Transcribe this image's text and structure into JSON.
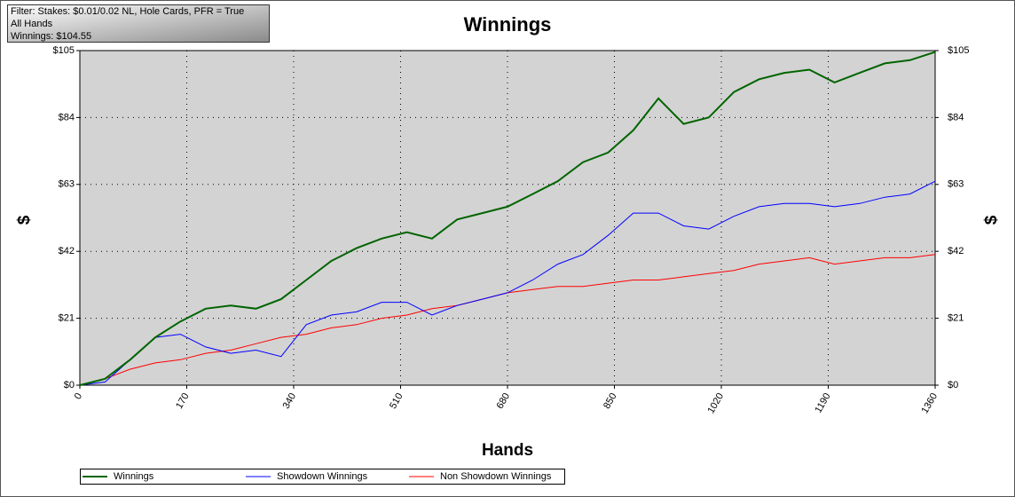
{
  "chart_data": {
    "type": "line",
    "title": "Winnings",
    "info": [
      "Filter: Stakes: $0.01/0.02 NL, Hole Cards, PFR = True",
      "All Hands",
      "Winnings: $104.55"
    ],
    "xlabel": "Hands",
    "ylabel": "$",
    "x": [
      0,
      40,
      80,
      120,
      160,
      200,
      240,
      280,
      320,
      360,
      400,
      440,
      480,
      520,
      560,
      600,
      640,
      680,
      720,
      760,
      800,
      840,
      880,
      920,
      960,
      1000,
      1040,
      1080,
      1120,
      1160,
      1200,
      1240,
      1280,
      1320,
      1360
    ],
    "series": [
      {
        "name": "Winnings",
        "color": "#006400",
        "values": [
          0,
          2,
          8,
          15,
          20,
          24,
          25,
          24,
          27,
          33,
          39,
          43,
          46,
          48,
          46,
          52,
          54,
          56,
          60,
          64,
          70,
          73,
          80,
          90,
          82,
          84,
          92,
          96,
          98,
          99,
          95,
          98,
          101,
          102,
          104.55
        ]
      },
      {
        "name": "Showdown Winnings",
        "color": "#0000ff",
        "values": [
          0,
          1,
          8,
          15,
          16,
          12,
          10,
          11,
          9,
          19,
          22,
          23,
          26,
          26,
          22,
          25,
          27,
          29,
          33,
          38,
          41,
          47,
          54,
          54,
          50,
          49,
          53,
          56,
          57,
          57,
          56,
          57,
          59,
          60,
          64
        ]
      },
      {
        "name": "Non Showdown Winnings",
        "color": "#ff0000",
        "values": [
          0,
          2,
          5,
          7,
          8,
          10,
          11,
          13,
          15,
          16,
          18,
          19,
          21,
          22,
          24,
          25,
          27,
          29,
          30,
          31,
          31,
          32,
          33,
          33,
          34,
          35,
          36,
          38,
          39,
          40,
          38,
          39,
          40,
          40,
          41
        ]
      }
    ],
    "xlim": [
      0,
      1360
    ],
    "xticks": [
      0,
      170,
      340,
      510,
      680,
      850,
      1020,
      1190,
      1360
    ],
    "ylim": [
      0,
      105
    ],
    "yticks": [
      {
        "value": 0,
        "label": "$0"
      },
      {
        "value": 21,
        "label": "$21"
      },
      {
        "value": 42,
        "label": "$42"
      },
      {
        "value": 63,
        "label": "$63"
      },
      {
        "value": 84,
        "label": "$84"
      },
      {
        "value": 105,
        "label": "$105"
      }
    ],
    "grid": true,
    "legend": "bottom"
  }
}
